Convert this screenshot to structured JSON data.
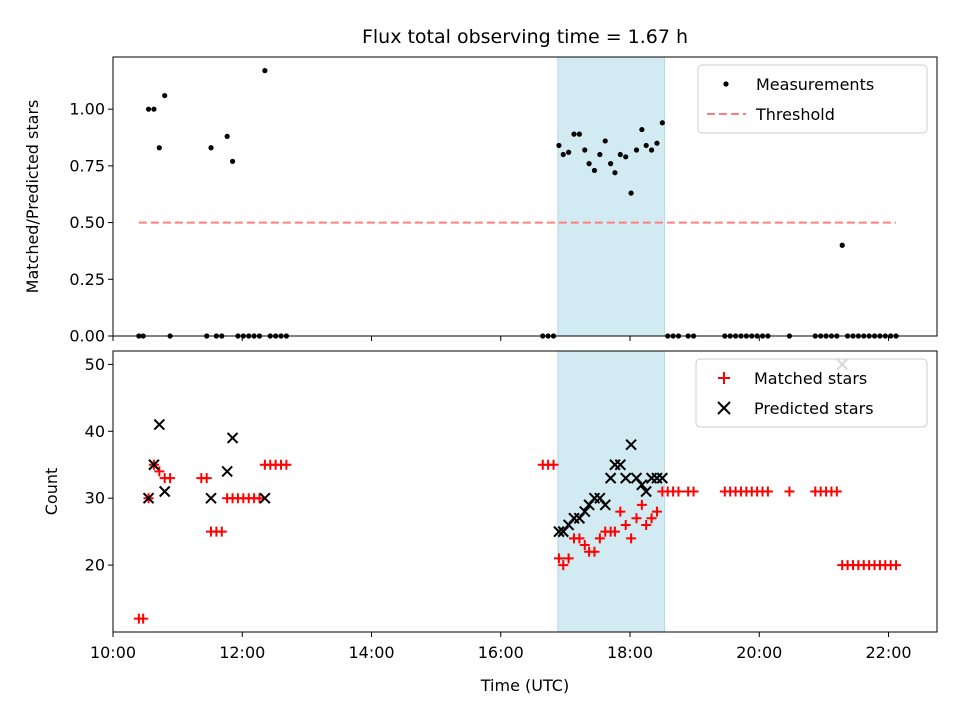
{
  "chart_data": [
    {
      "type": "scatter",
      "title": "Flux total observing time = 1.67 h",
      "ylabel": "Matched/Predicted stars",
      "xlabel": "",
      "xlim": [
        "10:00",
        "22:45"
      ],
      "ylim": [
        0,
        1.23
      ],
      "yticks": [
        "0.00",
        "0.25",
        "0.50",
        "0.75",
        "1.00"
      ],
      "shaded_interval": [
        "16:53",
        "18:32"
      ],
      "shade_color": "#add8e6",
      "legend_position": "top-right",
      "grid": false,
      "series": [
        {
          "name": "Measurements",
          "marker": "dot",
          "color": "#000000",
          "points": [
            [
              "10:24",
              0
            ],
            [
              "10:28",
              0
            ],
            [
              "10:33",
              1.0
            ],
            [
              "10:38",
              1.0
            ],
            [
              "10:43",
              0.83
            ],
            [
              "10:48",
              1.06
            ],
            [
              "10:53",
              0
            ],
            [
              "11:27",
              0
            ],
            [
              "11:31",
              0.83
            ],
            [
              "11:36",
              0
            ],
            [
              "11:41",
              0
            ],
            [
              "11:46",
              0.88
            ],
            [
              "11:51",
              0.77
            ],
            [
              "11:56",
              0
            ],
            [
              "12:01",
              0
            ],
            [
              "12:06",
              0
            ],
            [
              "12:11",
              0
            ],
            [
              "12:16",
              0
            ],
            [
              "12:21",
              1.17
            ],
            [
              "12:26",
              0
            ],
            [
              "12:31",
              0
            ],
            [
              "12:36",
              0
            ],
            [
              "12:41",
              0
            ],
            [
              "16:39",
              0
            ],
            [
              "16:44",
              0
            ],
            [
              "16:49",
              0
            ],
            [
              "16:54",
              0.84
            ],
            [
              "16:58",
              0.8
            ],
            [
              "17:03",
              0.81
            ],
            [
              "17:08",
              0.89
            ],
            [
              "17:13",
              0.89
            ],
            [
              "17:18",
              0.82
            ],
            [
              "17:22",
              0.76
            ],
            [
              "17:27",
              0.73
            ],
            [
              "17:32",
              0.8
            ],
            [
              "17:37",
              0.86
            ],
            [
              "17:42",
              0.76
            ],
            [
              "17:46",
              0.72
            ],
            [
              "17:51",
              0.8
            ],
            [
              "17:56",
              0.79
            ],
            [
              "18:01",
              0.63
            ],
            [
              "18:06",
              0.82
            ],
            [
              "18:11",
              0.91
            ],
            [
              "18:15",
              0.84
            ],
            [
              "18:20",
              0.82
            ],
            [
              "18:25",
              0.85
            ],
            [
              "18:30",
              0.94
            ],
            [
              "18:35",
              0
            ],
            [
              "18:40",
              0
            ],
            [
              "18:45",
              0
            ],
            [
              "18:54",
              0
            ],
            [
              "18:59",
              0
            ],
            [
              "19:28",
              0
            ],
            [
              "19:33",
              0
            ],
            [
              "19:38",
              0
            ],
            [
              "19:43",
              0
            ],
            [
              "19:48",
              0
            ],
            [
              "19:53",
              0
            ],
            [
              "19:58",
              0
            ],
            [
              "20:03",
              0
            ],
            [
              "20:08",
              0
            ],
            [
              "20:28",
              0
            ],
            [
              "20:52",
              0
            ],
            [
              "20:57",
              0
            ],
            [
              "21:02",
              0
            ],
            [
              "21:07",
              0
            ],
            [
              "21:12",
              0
            ],
            [
              "21:17",
              0.4
            ],
            [
              "21:22",
              0
            ],
            [
              "21:27",
              0
            ],
            [
              "21:32",
              0
            ],
            [
              "21:37",
              0
            ],
            [
              "21:42",
              0
            ],
            [
              "21:47",
              0
            ],
            [
              "21:52",
              0
            ],
            [
              "21:57",
              0
            ],
            [
              "22:02",
              0
            ],
            [
              "22:07",
              0
            ]
          ]
        },
        {
          "name": "Threshold",
          "line_style": "dashed",
          "color": "#ff7f7f",
          "points": [
            [
              "10:24",
              0.5
            ],
            [
              "22:07",
              0.5
            ]
          ]
        }
      ]
    },
    {
      "type": "scatter",
      "title": "",
      "ylabel": "Count",
      "xlabel": "Time (UTC)",
      "xlim": [
        "10:00",
        "22:45"
      ],
      "ylim": [
        10,
        52
      ],
      "yticks": [
        "20",
        "30",
        "40",
        "50"
      ],
      "xticks": [
        "10:00",
        "12:00",
        "14:00",
        "16:00",
        "18:00",
        "20:00",
        "22:00"
      ],
      "shaded_interval": [
        "16:53",
        "18:32"
      ],
      "shade_color": "#add8e6",
      "legend_position": "top-right",
      "grid": false,
      "series": [
        {
          "name": "Matched stars",
          "marker": "plus",
          "color": "#ff0000",
          "points": [
            [
              "10:24",
              12
            ],
            [
              "10:28",
              12
            ],
            [
              "10:33",
              30
            ],
            [
              "10:38",
              35
            ],
            [
              "10:43",
              34
            ],
            [
              "10:48",
              33
            ],
            [
              "10:53",
              33
            ],
            [
              "11:22",
              33
            ],
            [
              "11:27",
              33
            ],
            [
              "11:31",
              25
            ],
            [
              "11:36",
              25
            ],
            [
              "11:41",
              25
            ],
            [
              "11:46",
              30
            ],
            [
              "11:51",
              30
            ],
            [
              "11:56",
              30
            ],
            [
              "12:01",
              30
            ],
            [
              "12:06",
              30
            ],
            [
              "12:11",
              30
            ],
            [
              "12:16",
              30
            ],
            [
              "12:21",
              35
            ],
            [
              "12:26",
              35
            ],
            [
              "12:31",
              35
            ],
            [
              "12:36",
              35
            ],
            [
              "12:41",
              35
            ],
            [
              "16:39",
              35
            ],
            [
              "16:44",
              35
            ],
            [
              "16:49",
              35
            ],
            [
              "16:54",
              21
            ],
            [
              "16:58",
              20
            ],
            [
              "17:03",
              21
            ],
            [
              "17:08",
              24
            ],
            [
              "17:13",
              24
            ],
            [
              "17:18",
              23
            ],
            [
              "17:22",
              22
            ],
            [
              "17:27",
              22
            ],
            [
              "17:32",
              24
            ],
            [
              "17:37",
              25
            ],
            [
              "17:42",
              25
            ],
            [
              "17:46",
              25
            ],
            [
              "17:51",
              28
            ],
            [
              "17:56",
              26
            ],
            [
              "18:01",
              24
            ],
            [
              "18:06",
              27
            ],
            [
              "18:11",
              29
            ],
            [
              "18:15",
              26
            ],
            [
              "18:20",
              27
            ],
            [
              "18:25",
              28
            ],
            [
              "18:30",
              31
            ],
            [
              "18:35",
              31
            ],
            [
              "18:40",
              31
            ],
            [
              "18:45",
              31
            ],
            [
              "18:54",
              31
            ],
            [
              "18:59",
              31
            ],
            [
              "19:28",
              31
            ],
            [
              "19:33",
              31
            ],
            [
              "19:38",
              31
            ],
            [
              "19:43",
              31
            ],
            [
              "19:48",
              31
            ],
            [
              "19:53",
              31
            ],
            [
              "19:58",
              31
            ],
            [
              "20:03",
              31
            ],
            [
              "20:08",
              31
            ],
            [
              "20:28",
              31
            ],
            [
              "20:52",
              31
            ],
            [
              "20:57",
              31
            ],
            [
              "21:02",
              31
            ],
            [
              "21:07",
              31
            ],
            [
              "21:12",
              31
            ],
            [
              "21:17",
              20
            ],
            [
              "21:22",
              20
            ],
            [
              "21:27",
              20
            ],
            [
              "21:32",
              20
            ],
            [
              "21:37",
              20
            ],
            [
              "21:42",
              20
            ],
            [
              "21:47",
              20
            ],
            [
              "21:52",
              20
            ],
            [
              "21:57",
              20
            ],
            [
              "22:02",
              20
            ],
            [
              "22:07",
              20
            ]
          ]
        },
        {
          "name": "Predicted stars",
          "marker": "x",
          "color": "#000000",
          "points": [
            [
              "10:33",
              30
            ],
            [
              "10:38",
              35
            ],
            [
              "10:43",
              41
            ],
            [
              "10:48",
              31
            ],
            [
              "11:31",
              30
            ],
            [
              "11:46",
              34
            ],
            [
              "11:51",
              39
            ],
            [
              "12:21",
              30
            ],
            [
              "16:54",
              25
            ],
            [
              "16:58",
              25
            ],
            [
              "17:03",
              26
            ],
            [
              "17:08",
              27
            ],
            [
              "17:13",
              27
            ],
            [
              "17:18",
              28
            ],
            [
              "17:22",
              29
            ],
            [
              "17:27",
              30
            ],
            [
              "17:32",
              30
            ],
            [
              "17:37",
              29
            ],
            [
              "17:42",
              33
            ],
            [
              "17:46",
              35
            ],
            [
              "17:51",
              35
            ],
            [
              "17:56",
              33
            ],
            [
              "18:01",
              38
            ],
            [
              "18:06",
              33
            ],
            [
              "18:11",
              32
            ],
            [
              "18:15",
              31
            ],
            [
              "18:20",
              33
            ],
            [
              "18:25",
              33
            ],
            [
              "18:30",
              33
            ],
            [
              "21:17",
              50
            ]
          ]
        }
      ]
    }
  ]
}
